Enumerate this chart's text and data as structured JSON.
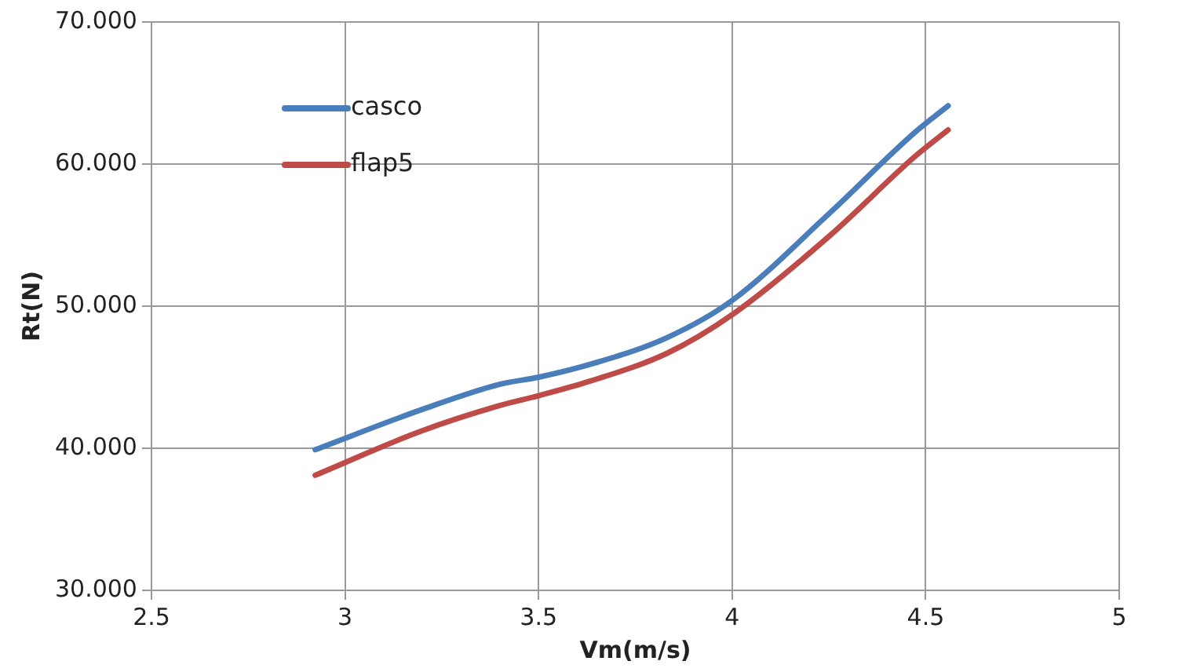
{
  "chart_data": {
    "type": "line",
    "xlabel": "Vm(m/s)",
    "ylabel": "Rt(N)",
    "xlim": [
      2.5,
      5
    ],
    "xticks": [
      2.5,
      3,
      3.5,
      4,
      4.5,
      5
    ],
    "ylim": [
      30,
      70
    ],
    "yticks": [
      {
        "value": 30,
        "label": "30.000"
      },
      {
        "value": 40,
        "label": "40.000"
      },
      {
        "value": 50,
        "label": "50.000"
      },
      {
        "value": 60,
        "label": "60.000"
      },
      {
        "value": 70,
        "label": "70.000"
      }
    ],
    "grid": true,
    "legend": "top left",
    "marker": "none",
    "line_style": "solid",
    "series": [
      {
        "name": "casco",
        "color": "#4a7ebb",
        "x": [
          2.923,
          3.196,
          3.399,
          3.5,
          3.645,
          3.833,
          4.0,
          4.254,
          4.471,
          4.558
        ],
        "values": [
          39.9,
          42.7,
          44.5,
          45.0,
          46.0,
          47.8,
          50.4,
          56.6,
          62.2,
          64.1
        ]
      },
      {
        "name": "flap5",
        "color": "#be4b48",
        "x": [
          2.923,
          3.196,
          3.399,
          3.5,
          3.63,
          3.833,
          4.0,
          4.254,
          4.471,
          4.558
        ],
        "values": [
          38.1,
          41.2,
          43.0,
          43.7,
          44.7,
          46.7,
          49.4,
          55.0,
          60.5,
          62.4
        ]
      }
    ]
  }
}
